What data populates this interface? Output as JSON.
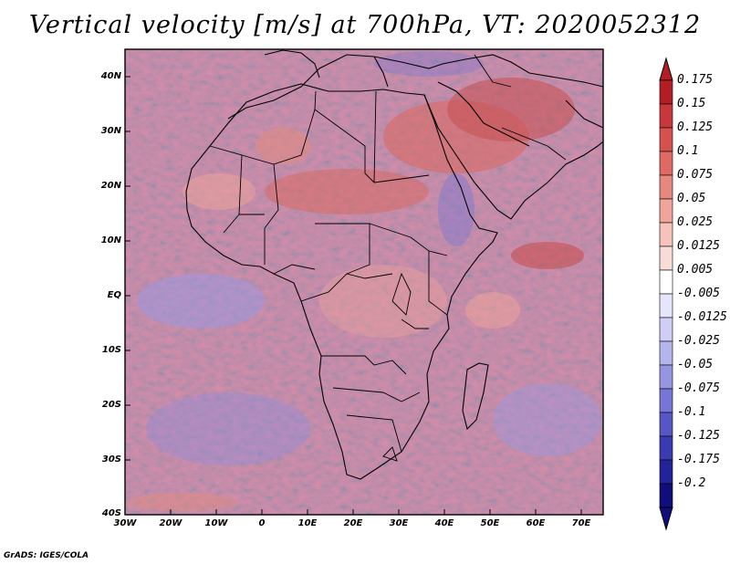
{
  "title": "Vertical velocity [m/s] at 700hPa, VT: 2020052312",
  "latitude_labels": [
    "40N",
    "30N",
    "20N",
    "10N",
    "EQ",
    "10S",
    "20S",
    "30S",
    "40S"
  ],
  "longitude_labels": [
    "30W",
    "20W",
    "10W",
    "0",
    "10E",
    "20E",
    "30E",
    "40E",
    "50E",
    "60E",
    "70E"
  ],
  "colorbar": {
    "labels": [
      "0.175",
      "0.15",
      "0.125",
      "0.1",
      "0.075",
      "0.05",
      "0.025",
      "0.0125",
      "0.005",
      "-0.005",
      "-0.0125",
      "-0.025",
      "-0.05",
      "-0.075",
      "-0.1",
      "-0.125",
      "-0.175",
      "-0.2"
    ],
    "colors": [
      "#b21e24",
      "#c8373b",
      "#d6504d",
      "#e06a63",
      "#e8877d",
      "#f0a49a",
      "#f5c3ba",
      "#f8dcd6",
      "#ffffff",
      "#e5e5fb",
      "#cfcff5",
      "#b5b5ee",
      "#9595e4",
      "#7676d8",
      "#5656c8",
      "#3a3ab2",
      "#22229a",
      "#100d7c"
    ]
  },
  "footer": "GrADS: IGES/COLA"
}
